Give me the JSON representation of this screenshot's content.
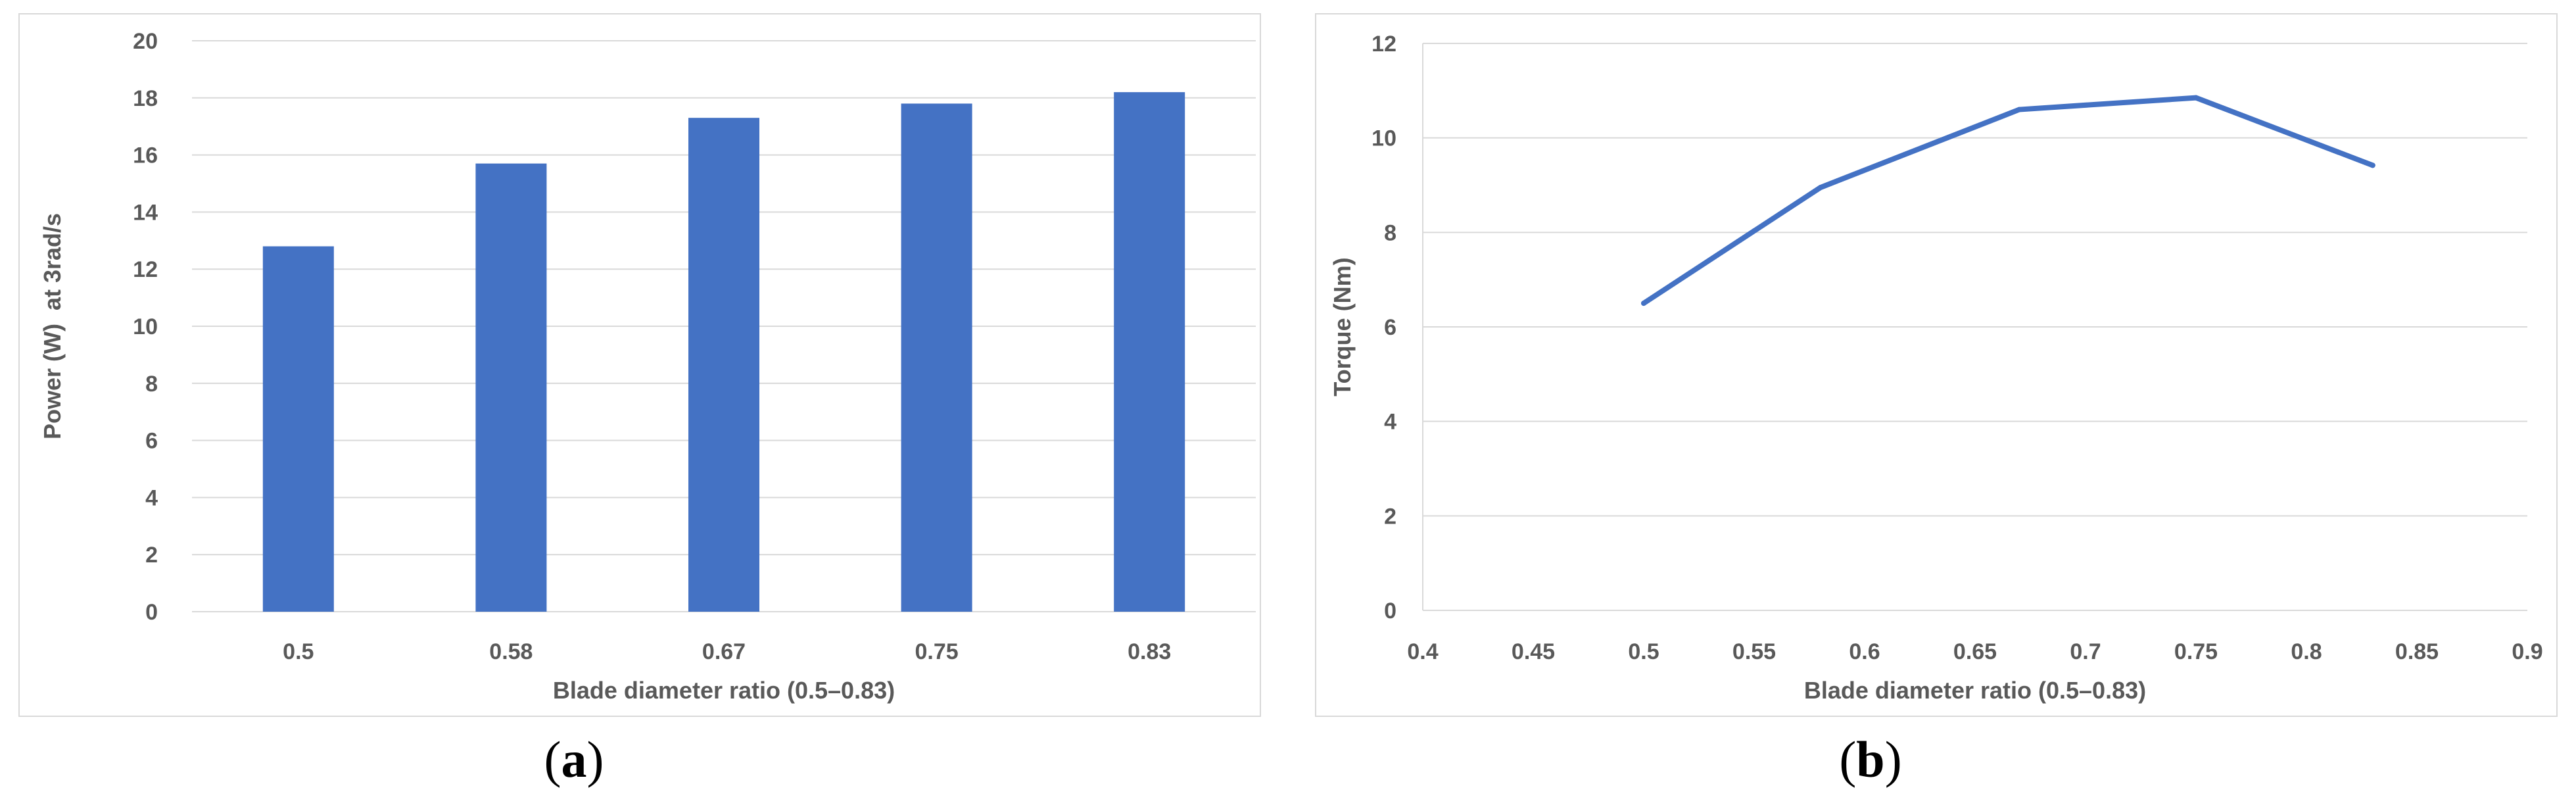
{
  "chart_data": [
    {
      "type": "bar",
      "panel_label": "a",
      "categories": [
        "0.5",
        "0.58",
        "0.67",
        "0.75",
        "0.83"
      ],
      "values": [
        12.8,
        15.7,
        17.3,
        17.8,
        18.2
      ],
      "xlabel": "Blade diameter ratio (0.5–0.83)",
      "ylabel": "Power (W)  at 3rad/s",
      "ylim": [
        0,
        20
      ],
      "yticks": [
        0,
        2,
        4,
        6,
        8,
        10,
        12,
        14,
        16,
        18,
        20
      ],
      "grid": true,
      "legend": "none",
      "color": "#4472c4"
    },
    {
      "type": "line",
      "panel_label": "b",
      "x": [
        0.5,
        0.58,
        0.67,
        0.75,
        0.83
      ],
      "y": [
        6.5,
        8.95,
        10.6,
        10.85,
        9.42
      ],
      "xlabel": "Blade diameter ratio (0.5–0.83)",
      "ylabel": "Torque (Nm)",
      "xlim": [
        0.4,
        0.9
      ],
      "ylim": [
        0,
        12
      ],
      "xticks": [
        "0.4",
        "0.45",
        "0.5",
        "0.55",
        "0.6",
        "0.65",
        "0.7",
        "0.75",
        "0.8",
        "0.85",
        "0.9"
      ],
      "yticks": [
        0,
        2,
        4,
        6,
        8,
        10,
        12
      ],
      "grid": true,
      "legend": "none",
      "color": "#4472c4"
    }
  ],
  "captions": {
    "a": "a",
    "b": "b"
  }
}
